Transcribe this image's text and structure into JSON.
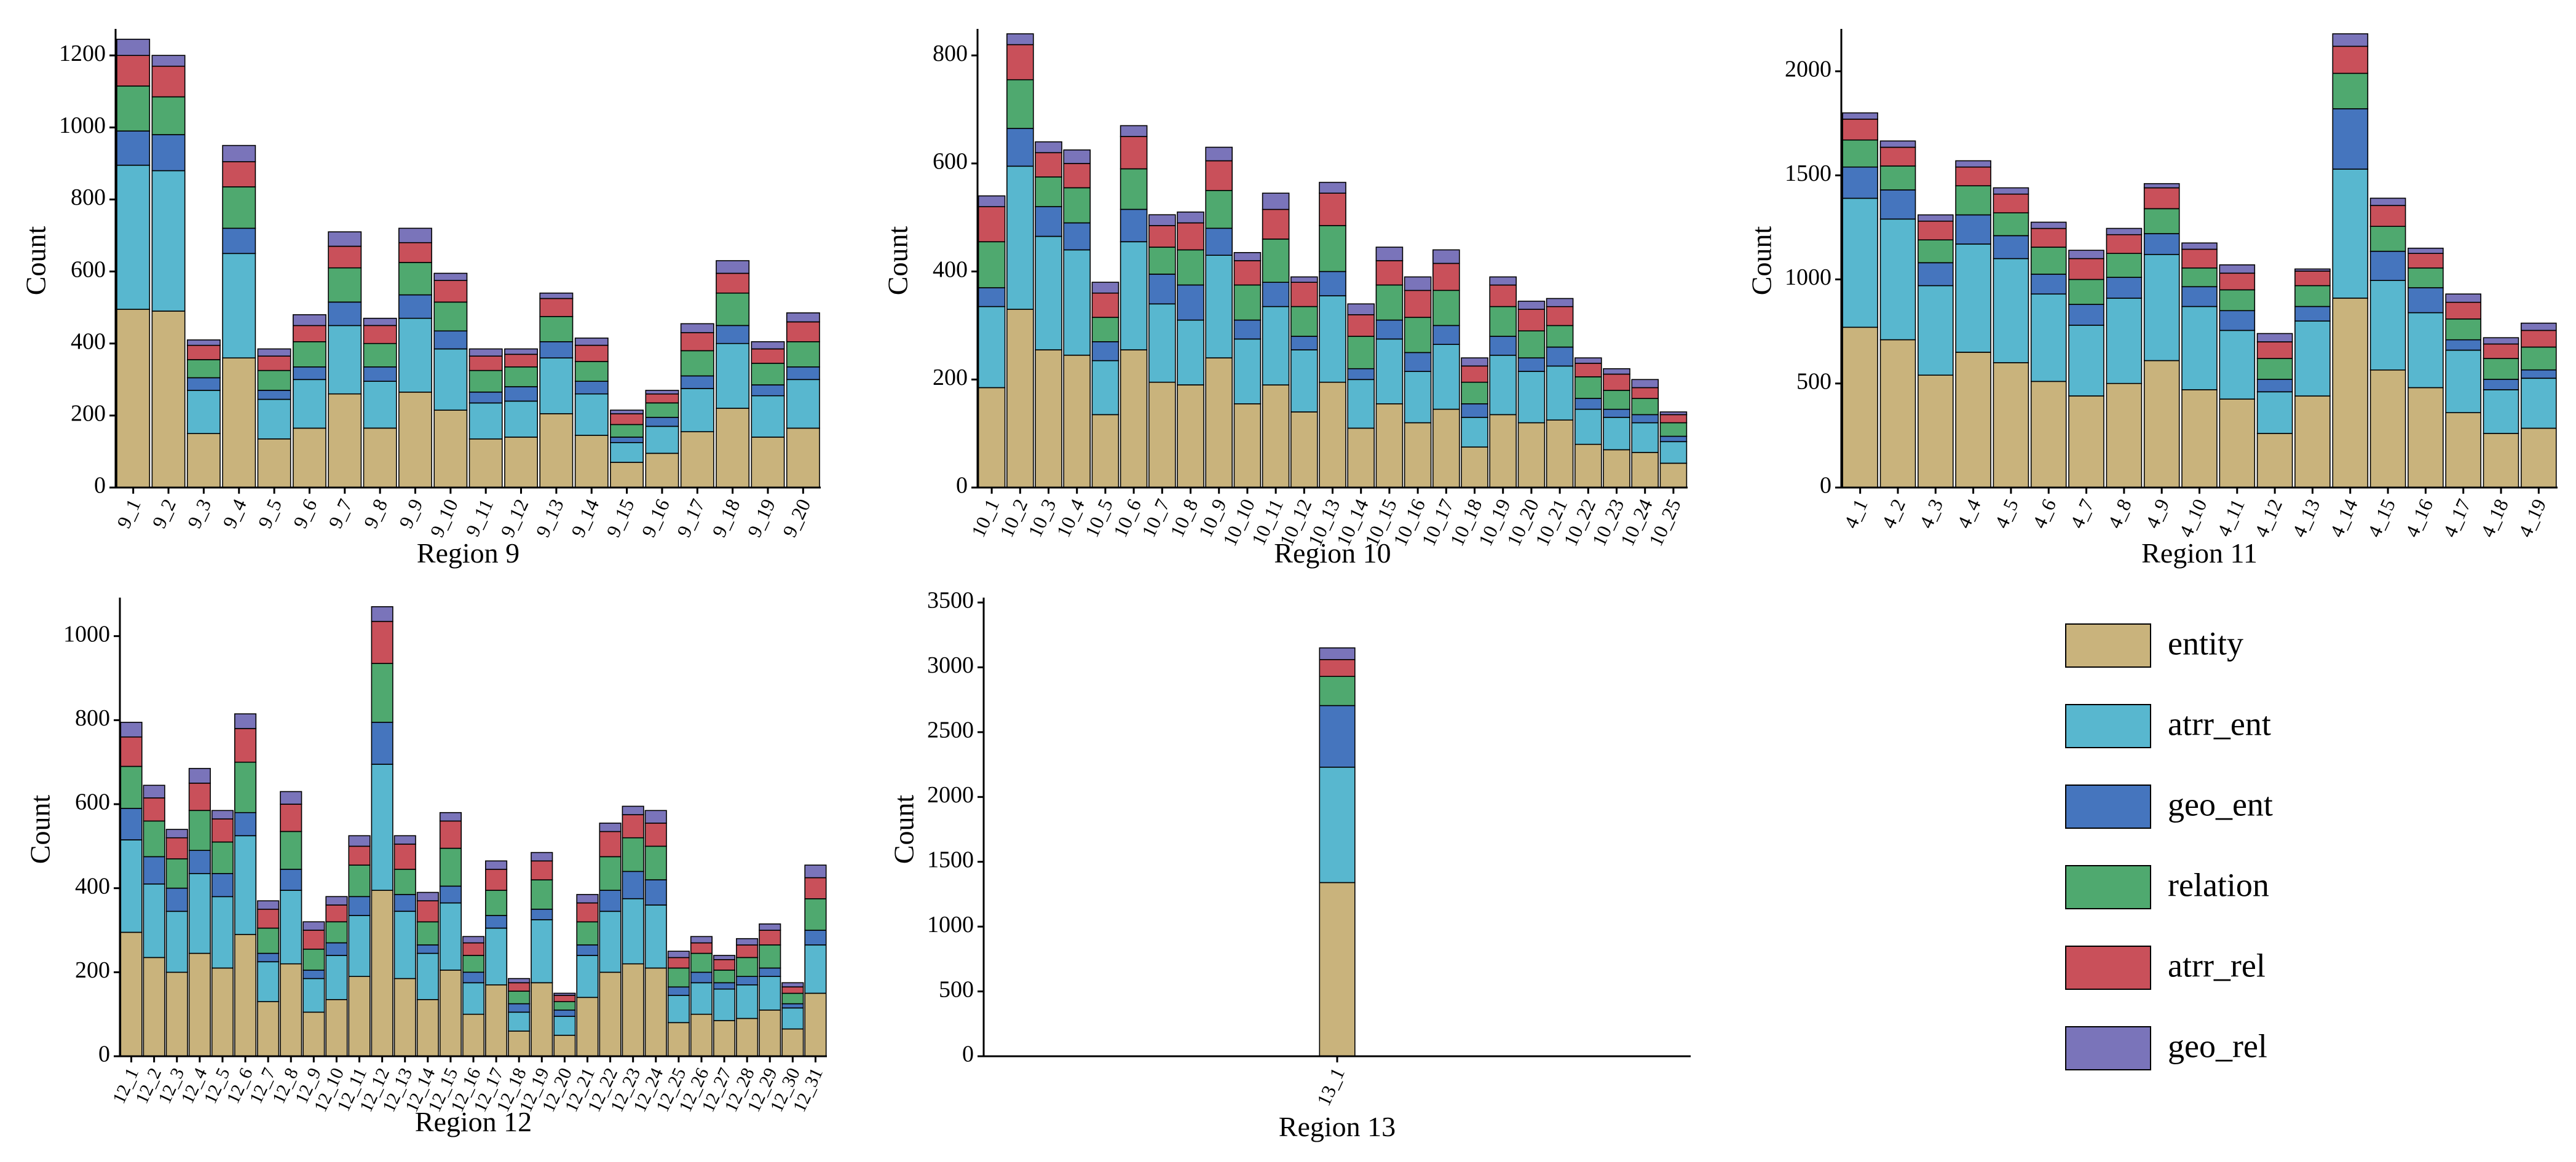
{
  "legend": [
    {
      "key": "entity",
      "label": "entity",
      "color": "#C9B37C"
    },
    {
      "key": "atrr_ent",
      "label": "atrr_ent",
      "color": "#58B7CF"
    },
    {
      "key": "geo_ent",
      "label": "geo_ent",
      "color": "#4575BE"
    },
    {
      "key": "relation",
      "label": "relation",
      "color": "#4FA96F"
    },
    {
      "key": "atrr_rel",
      "label": "atrr_rel",
      "color": "#C9505A"
    },
    {
      "key": "geo_rel",
      "label": "geo_rel",
      "color": "#7A74BA"
    }
  ],
  "chart_data": [
    {
      "type": "bar",
      "stacked": true,
      "title": "Region 9",
      "xlabel": "Region 9",
      "ylabel": "Count",
      "ylim": [
        0,
        1260
      ],
      "yticks": [
        0,
        200,
        400,
        600,
        800,
        1000,
        1200
      ],
      "categories": [
        "9_1",
        "9_2",
        "9_3",
        "9_4",
        "9_5",
        "9_6",
        "9_7",
        "9_8",
        "9_9",
        "9_10",
        "9_11",
        "9_12",
        "9_13",
        "9_14",
        "9_15",
        "9_16",
        "9_17",
        "9_18",
        "9_19",
        "9_20"
      ],
      "series": [
        {
          "name": "entity",
          "values": [
            495,
            490,
            150,
            360,
            135,
            165,
            260,
            165,
            265,
            215,
            135,
            140,
            205,
            145,
            70,
            95,
            155,
            220,
            140,
            165
          ]
        },
        {
          "name": "atrr_ent",
          "values": [
            400,
            390,
            120,
            290,
            110,
            135,
            190,
            130,
            205,
            170,
            100,
            100,
            155,
            115,
            55,
            75,
            120,
            180,
            115,
            135
          ]
        },
        {
          "name": "geo_ent",
          "values": [
            95,
            100,
            35,
            70,
            25,
            35,
            65,
            40,
            65,
            50,
            30,
            40,
            45,
            35,
            15,
            25,
            35,
            50,
            30,
            35
          ]
        },
        {
          "name": "relation",
          "values": [
            125,
            105,
            50,
            115,
            55,
            70,
            95,
            65,
            90,
            80,
            60,
            55,
            70,
            55,
            35,
            40,
            70,
            90,
            60,
            70
          ]
        },
        {
          "name": "atrr_rel",
          "values": [
            85,
            85,
            40,
            70,
            40,
            45,
            60,
            50,
            55,
            60,
            40,
            35,
            50,
            45,
            30,
            25,
            50,
            55,
            40,
            55
          ]
        },
        {
          "name": "geo_rel",
          "values": [
            45,
            30,
            15,
            45,
            20,
            30,
            40,
            20,
            40,
            20,
            20,
            15,
            15,
            20,
            10,
            10,
            25,
            35,
            20,
            25
          ]
        }
      ]
    },
    {
      "type": "bar",
      "stacked": true,
      "title": "Region 10",
      "xlabel": "Region 10",
      "ylabel": "Count",
      "ylim": [
        0,
        840
      ],
      "yticks": [
        0,
        200,
        400,
        600,
        800
      ],
      "categories": [
        "10_1",
        "10_2",
        "10_3",
        "10_4",
        "10_5",
        "10_6",
        "10_7",
        "10_8",
        "10_9",
        "10_10",
        "10_11",
        "10_12",
        "10_13",
        "10_14",
        "10_15",
        "10_16",
        "10_17",
        "10_18",
        "10_19",
        "10_20",
        "10_21",
        "10_22",
        "10_23",
        "10_24",
        "10_25"
      ],
      "series": [
        {
          "name": "entity",
          "values": [
            185,
            330,
            255,
            245,
            135,
            255,
            195,
            190,
            240,
            155,
            190,
            140,
            195,
            110,
            155,
            120,
            145,
            75,
            135,
            120,
            125,
            80,
            70,
            65,
            45
          ]
        },
        {
          "name": "atrr_ent",
          "values": [
            150,
            265,
            210,
            195,
            100,
            200,
            145,
            120,
            190,
            120,
            145,
            115,
            160,
            90,
            120,
            95,
            120,
            55,
            110,
            95,
            100,
            65,
            60,
            55,
            40
          ]
        },
        {
          "name": "geo_ent",
          "values": [
            35,
            70,
            55,
            50,
            35,
            60,
            55,
            65,
            50,
            35,
            45,
            25,
            45,
            20,
            35,
            35,
            35,
            25,
            35,
            25,
            35,
            20,
            15,
            15,
            10
          ]
        },
        {
          "name": "relation",
          "values": [
            85,
            90,
            55,
            65,
            45,
            75,
            50,
            65,
            70,
            65,
            80,
            55,
            85,
            60,
            65,
            65,
            65,
            40,
            55,
            50,
            40,
            40,
            35,
            30,
            25
          ]
        },
        {
          "name": "atrr_rel",
          "values": [
            65,
            65,
            45,
            45,
            45,
            60,
            40,
            50,
            55,
            45,
            55,
            45,
            60,
            40,
            45,
            50,
            50,
            30,
            40,
            40,
            35,
            25,
            30,
            20,
            15
          ]
        },
        {
          "name": "geo_rel",
          "values": [
            20,
            20,
            20,
            25,
            20,
            20,
            20,
            20,
            25,
            15,
            30,
            10,
            20,
            20,
            25,
            25,
            25,
            15,
            15,
            15,
            15,
            10,
            10,
            15,
            5
          ]
        }
      ]
    },
    {
      "type": "bar",
      "stacked": true,
      "title": "Region 11",
      "xlabel": "Region 11",
      "ylabel": "Count",
      "ylim": [
        0,
        2180
      ],
      "yticks": [
        0,
        500,
        1000,
        1500,
        2000
      ],
      "categories": [
        "4_1",
        "4_2",
        "4_3",
        "4_4",
        "4_5",
        "4_6",
        "4_7",
        "4_8",
        "4_9",
        "4_10",
        "4_11",
        "4_12",
        "4_13",
        "4_14",
        "4_15",
        "4_16",
        "4_17",
        "4_18",
        "4_19"
      ],
      "series": [
        {
          "name": "entity",
          "values": [
            770,
            710,
            540,
            650,
            600,
            510,
            440,
            500,
            610,
            470,
            425,
            260,
            440,
            910,
            565,
            480,
            360,
            260,
            285
          ]
        },
        {
          "name": "atrr_ent",
          "values": [
            620,
            580,
            430,
            520,
            500,
            420,
            340,
            410,
            510,
            400,
            330,
            200,
            360,
            620,
            430,
            360,
            300,
            210,
            240
          ]
        },
        {
          "name": "geo_ent",
          "values": [
            150,
            140,
            110,
            140,
            110,
            95,
            100,
            100,
            100,
            95,
            95,
            60,
            70,
            290,
            140,
            120,
            50,
            50,
            40
          ]
        },
        {
          "name": "relation",
          "values": [
            130,
            115,
            110,
            140,
            110,
            130,
            120,
            115,
            120,
            90,
            100,
            100,
            100,
            170,
            120,
            95,
            100,
            100,
            110
          ]
        },
        {
          "name": "atrr_rel",
          "values": [
            100,
            90,
            90,
            90,
            90,
            90,
            100,
            90,
            100,
            90,
            80,
            80,
            70,
            130,
            100,
            70,
            80,
            70,
            80
          ]
        },
        {
          "name": "geo_rel",
          "values": [
            30,
            30,
            30,
            30,
            30,
            30,
            40,
            30,
            20,
            30,
            40,
            40,
            10,
            60,
            35,
            25,
            40,
            30,
            35
          ]
        }
      ]
    },
    {
      "type": "bar",
      "stacked": true,
      "title": "Region 12",
      "xlabel": "Region 12",
      "ylabel": "Count",
      "ylim": [
        0,
        1080
      ],
      "yticks": [
        0,
        200,
        400,
        600,
        800,
        1000
      ],
      "categories": [
        "12_1",
        "12_2",
        "12_3",
        "12_4",
        "12_5",
        "12_6",
        "12_7",
        "12_8",
        "12_9",
        "12_10",
        "12_11",
        "12_12",
        "12_13",
        "12_14",
        "12_15",
        "12_16",
        "12_17",
        "12_18",
        "12_19",
        "12_20",
        "12_21",
        "12_22",
        "12_23",
        "12_24",
        "12_25",
        "12_26",
        "12_27",
        "12_28",
        "12_29",
        "12_30",
        "12_31"
      ],
      "series": [
        {
          "name": "entity",
          "values": [
            295,
            235,
            200,
            245,
            210,
            290,
            130,
            220,
            105,
            135,
            190,
            395,
            185,
            135,
            205,
            100,
            170,
            60,
            175,
            50,
            140,
            200,
            220,
            210,
            80,
            100,
            85,
            90,
            110,
            65,
            150
          ]
        },
        {
          "name": "atrr_ent",
          "values": [
            220,
            175,
            145,
            190,
            170,
            235,
            95,
            175,
            80,
            105,
            145,
            300,
            160,
            110,
            160,
            75,
            135,
            45,
            150,
            45,
            100,
            145,
            155,
            150,
            65,
            75,
            75,
            80,
            80,
            50,
            115
          ]
        },
        {
          "name": "geo_ent",
          "values": [
            75,
            65,
            55,
            55,
            55,
            55,
            20,
            50,
            20,
            30,
            45,
            100,
            40,
            20,
            40,
            25,
            30,
            20,
            25,
            15,
            25,
            50,
            65,
            60,
            20,
            25,
            15,
            20,
            20,
            10,
            35
          ]
        },
        {
          "name": "relation",
          "values": [
            100,
            85,
            70,
            95,
            75,
            120,
            60,
            90,
            50,
            50,
            75,
            140,
            60,
            55,
            90,
            40,
            60,
            30,
            70,
            20,
            55,
            80,
            80,
            80,
            45,
            45,
            30,
            45,
            55,
            25,
            75
          ]
        },
        {
          "name": "atrr_rel",
          "values": [
            70,
            55,
            50,
            65,
            55,
            80,
            45,
            65,
            45,
            40,
            45,
            100,
            60,
            50,
            65,
            30,
            50,
            20,
            45,
            15,
            45,
            60,
            55,
            55,
            25,
            25,
            25,
            30,
            35,
            15,
            50
          ]
        },
        {
          "name": "geo_rel",
          "values": [
            35,
            30,
            20,
            35,
            20,
            35,
            20,
            30,
            20,
            20,
            25,
            35,
            20,
            20,
            20,
            15,
            20,
            10,
            20,
            5,
            20,
            20,
            20,
            30,
            15,
            15,
            10,
            15,
            15,
            10,
            30
          ]
        }
      ]
    },
    {
      "type": "bar",
      "stacked": true,
      "title": "Region 13",
      "xlabel": "Region 13",
      "ylabel": "Count",
      "ylim": [
        0,
        3500
      ],
      "yticks": [
        0,
        500,
        1000,
        1500,
        2000,
        2500,
        3000,
        3500
      ],
      "categories": [
        "13_1"
      ],
      "series": [
        {
          "name": "entity",
          "values": [
            1340
          ]
        },
        {
          "name": "atrr_ent",
          "values": [
            890
          ]
        },
        {
          "name": "geo_ent",
          "values": [
            475
          ]
        },
        {
          "name": "relation",
          "values": [
            225
          ]
        },
        {
          "name": "atrr_rel",
          "values": [
            130
          ]
        },
        {
          "name": "geo_rel",
          "values": [
            90
          ]
        }
      ]
    }
  ]
}
